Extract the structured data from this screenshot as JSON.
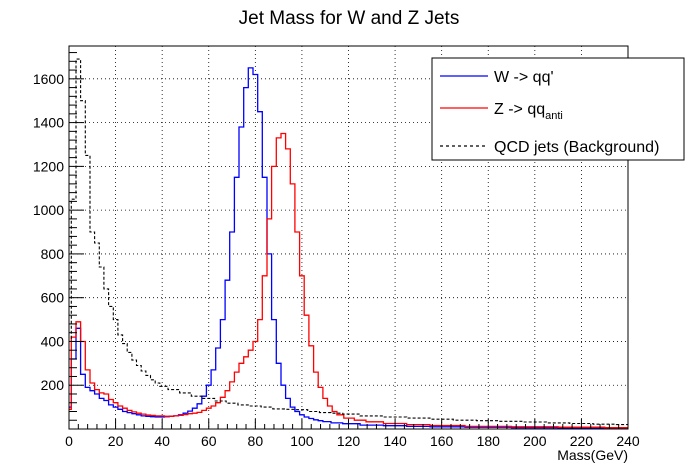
{
  "chart_data": {
    "type": "line",
    "title": "Jet Mass for W and Z Jets",
    "xlabel": "Mass(GeV)",
    "ylabel": "",
    "xlim": [
      0,
      240
    ],
    "ylim": [
      0,
      1750
    ],
    "x_ticks": [
      0,
      20,
      40,
      60,
      80,
      100,
      120,
      140,
      160,
      180,
      200,
      220,
      240
    ],
    "y_ticks": [
      200,
      400,
      600,
      800,
      1000,
      1200,
      1400,
      1600
    ],
    "grid": true,
    "legend_position": "top-right",
    "series": [
      {
        "name": "W -> qq'",
        "color": "#0000ff",
        "style": "solid",
        "x": [
          0,
          2,
          4,
          6,
          8,
          10,
          12,
          14,
          16,
          18,
          20,
          22,
          24,
          26,
          28,
          30,
          32,
          34,
          36,
          38,
          40,
          42,
          44,
          46,
          48,
          50,
          52,
          54,
          56,
          58,
          60,
          62,
          64,
          66,
          68,
          70,
          72,
          74,
          76,
          78,
          80,
          82,
          84,
          86,
          88,
          90,
          92,
          94,
          96,
          98,
          100,
          102,
          104,
          106,
          108,
          110,
          115,
          120,
          130,
          140,
          150,
          160,
          180,
          200,
          220,
          240
        ],
        "y": [
          100,
          320,
          460,
          250,
          190,
          175,
          160,
          140,
          130,
          110,
          100,
          90,
          80,
          75,
          70,
          65,
          60,
          58,
          56,
          55,
          55,
          56,
          58,
          60,
          65,
          72,
          82,
          95,
          115,
          150,
          200,
          270,
          370,
          500,
          680,
          900,
          1150,
          1380,
          1560,
          1650,
          1620,
          1450,
          1150,
          800,
          500,
          300,
          200,
          140,
          100,
          80,
          65,
          55,
          48,
          42,
          38,
          34,
          28,
          24,
          18,
          15,
          12,
          10,
          8,
          6,
          5,
          4
        ]
      },
      {
        "name": "Z -> qq_anti",
        "color": "#ff0000",
        "style": "solid",
        "x": [
          0,
          2,
          4,
          6,
          8,
          10,
          12,
          14,
          16,
          18,
          20,
          22,
          24,
          26,
          28,
          30,
          32,
          34,
          36,
          38,
          40,
          42,
          44,
          46,
          48,
          50,
          52,
          54,
          56,
          58,
          60,
          62,
          64,
          66,
          68,
          70,
          72,
          74,
          76,
          78,
          80,
          82,
          84,
          86,
          88,
          90,
          92,
          94,
          96,
          98,
          100,
          102,
          104,
          106,
          108,
          110,
          112,
          114,
          116,
          120,
          125,
          130,
          140,
          150,
          160,
          180,
          200,
          220,
          240
        ],
        "y": [
          90,
          420,
          490,
          400,
          270,
          210,
          180,
          165,
          160,
          135,
          120,
          105,
          95,
          85,
          78,
          72,
          68,
          64,
          62,
          60,
          60,
          58,
          58,
          60,
          62,
          66,
          70,
          72,
          76,
          85,
          95,
          105,
          120,
          145,
          175,
          215,
          260,
          300,
          330,
          360,
          400,
          500,
          700,
          960,
          1200,
          1330,
          1350,
          1280,
          1120,
          900,
          700,
          520,
          380,
          260,
          190,
          140,
          105,
          80,
          65,
          50,
          40,
          33,
          25,
          20,
          16,
          12,
          10,
          8,
          6
        ]
      },
      {
        "name": "QCD jets (Background)",
        "color": "#000000",
        "style": "dashed",
        "x": [
          0,
          2,
          4,
          6,
          8,
          10,
          12,
          14,
          16,
          18,
          20,
          22,
          24,
          26,
          28,
          30,
          32,
          34,
          36,
          38,
          40,
          45,
          50,
          55,
          60,
          65,
          70,
          75,
          80,
          85,
          90,
          95,
          100,
          105,
          110,
          115,
          120,
          130,
          140,
          150,
          160,
          170,
          180,
          190,
          200,
          210,
          220,
          230,
          240
        ],
        "y": [
          400,
          1050,
          1690,
          1500,
          1250,
          900,
          850,
          740,
          640,
          560,
          500,
          430,
          390,
          350,
          315,
          290,
          265,
          245,
          225,
          210,
          195,
          180,
          165,
          150,
          140,
          128,
          118,
          110,
          105,
          100,
          92,
          90,
          88,
          80,
          75,
          72,
          68,
          60,
          55,
          50,
          45,
          40,
          38,
          35,
          32,
          28,
          25,
          22,
          20
        ]
      }
    ]
  }
}
